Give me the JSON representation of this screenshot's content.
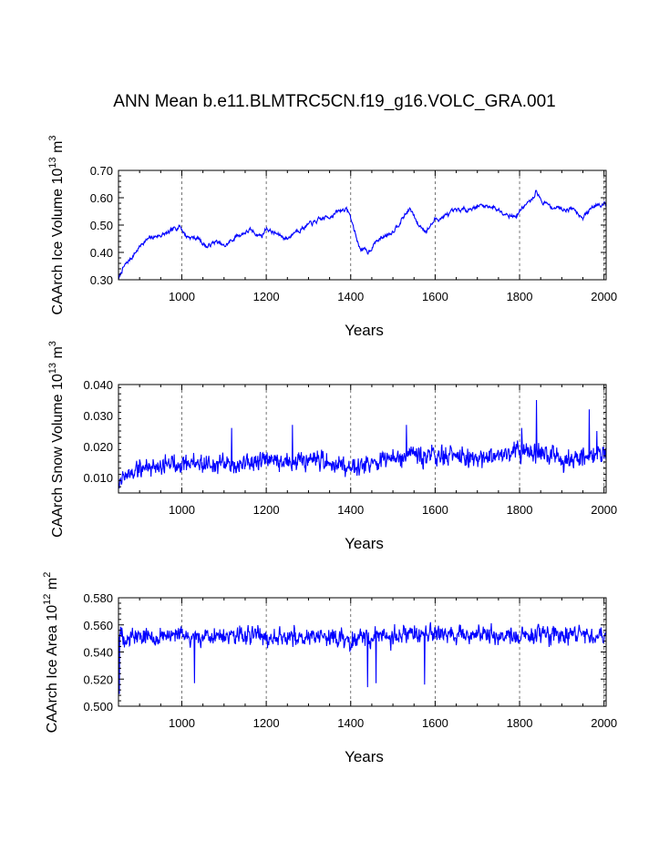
{
  "title": "ANN Mean b.e11.BLMTRC5CN.f19_g16.VOLC_GRA.001",
  "chart_data": [
    {
      "type": "line",
      "id": "ice_volume",
      "ylabel_main": "CAArch Ice Volume 10",
      "ylabel_exp1": "13",
      "ylabel_unit": " m",
      "ylabel_exp2": "3",
      "xlabel": "Years",
      "xlim": [
        850,
        2005
      ],
      "ylim": [
        0.3,
        0.7
      ],
      "xticks": [
        1000,
        1200,
        1400,
        1600,
        1800,
        2000
      ],
      "xtick_labels": [
        "1000",
        "1200",
        "1400",
        "1600",
        "1800",
        "2000"
      ],
      "yticks": [
        0.3,
        0.4,
        0.5,
        0.6,
        0.7
      ],
      "ytick_labels": [
        "0.30",
        "0.40",
        "0.50",
        "0.60",
        "0.70"
      ],
      "grid_x": true,
      "series": [
        {
          "name": "ice volume",
          "color": "#0000ff",
          "mode": "trend",
          "anchors": [
            [
              850,
              0.3
            ],
            [
              860,
              0.34
            ],
            [
              875,
              0.37
            ],
            [
              890,
              0.4
            ],
            [
              910,
              0.44
            ],
            [
              940,
              0.46
            ],
            [
              970,
              0.47
            ],
            [
              995,
              0.5
            ],
            [
              1010,
              0.46
            ],
            [
              1040,
              0.45
            ],
            [
              1060,
              0.42
            ],
            [
              1080,
              0.44
            ],
            [
              1100,
              0.42
            ],
            [
              1130,
              0.46
            ],
            [
              1160,
              0.48
            ],
            [
              1190,
              0.46
            ],
            [
              1200,
              0.49
            ],
            [
              1220,
              0.47
            ],
            [
              1250,
              0.45
            ],
            [
              1270,
              0.48
            ],
            [
              1300,
              0.5
            ],
            [
              1330,
              0.52
            ],
            [
              1360,
              0.54
            ],
            [
              1385,
              0.56
            ],
            [
              1395,
              0.55
            ],
            [
              1405,
              0.5
            ],
            [
              1420,
              0.42
            ],
            [
              1440,
              0.4
            ],
            [
              1460,
              0.44
            ],
            [
              1480,
              0.46
            ],
            [
              1500,
              0.48
            ],
            [
              1520,
              0.52
            ],
            [
              1540,
              0.56
            ],
            [
              1560,
              0.5
            ],
            [
              1580,
              0.48
            ],
            [
              1600,
              0.52
            ],
            [
              1620,
              0.53
            ],
            [
              1650,
              0.55
            ],
            [
              1680,
              0.56
            ],
            [
              1700,
              0.57
            ],
            [
              1730,
              0.57
            ],
            [
              1760,
              0.55
            ],
            [
              1790,
              0.53
            ],
            [
              1810,
              0.57
            ],
            [
              1830,
              0.59
            ],
            [
              1840,
              0.63
            ],
            [
              1850,
              0.59
            ],
            [
              1870,
              0.57
            ],
            [
              1900,
              0.56
            ],
            [
              1930,
              0.56
            ],
            [
              1950,
              0.53
            ],
            [
              1970,
              0.56
            ],
            [
              1985,
              0.58
            ],
            [
              2005,
              0.58
            ]
          ],
          "noise": 0.012,
          "seed": 7
        }
      ]
    },
    {
      "type": "line",
      "id": "snow_volume",
      "ylabel_main": "CAArch Snow Volume 10",
      "ylabel_exp1": "13",
      "ylabel_unit": " m",
      "ylabel_exp2": "3",
      "xlabel": "Years",
      "xlim": [
        850,
        2005
      ],
      "ylim": [
        0.005,
        0.04
      ],
      "xticks": [
        1000,
        1200,
        1400,
        1600,
        1800,
        2000
      ],
      "xtick_labels": [
        "1000",
        "1200",
        "1400",
        "1600",
        "1800",
        "2000"
      ],
      "yticks": [
        0.01,
        0.02,
        0.03,
        0.04
      ],
      "ytick_labels": [
        "0.010",
        "0.020",
        "0.030",
        "0.040"
      ],
      "grid_x": true,
      "series": [
        {
          "name": "snow volume",
          "color": "#0000ff",
          "mode": "noise",
          "anchors": [
            [
              850,
              0.009
            ],
            [
              900,
              0.013
            ],
            [
              1000,
              0.015
            ],
            [
              1100,
              0.014
            ],
            [
              1200,
              0.015
            ],
            [
              1300,
              0.015
            ],
            [
              1400,
              0.014
            ],
            [
              1500,
              0.016
            ],
            [
              1600,
              0.017
            ],
            [
              1700,
              0.016
            ],
            [
              1800,
              0.019
            ],
            [
              1900,
              0.016
            ],
            [
              2005,
              0.018
            ]
          ],
          "noise": 0.0045,
          "seed": 19,
          "spikes": [
            [
              1840,
              0.035
            ],
            [
              1532,
              0.027
            ],
            [
              1262,
              0.027
            ],
            [
              1118,
              0.026
            ],
            [
              1965,
              0.032
            ],
            [
              1983,
              0.025
            ],
            [
              1805,
              0.026
            ]
          ]
        }
      ]
    },
    {
      "type": "line",
      "id": "ice_area",
      "ylabel_main": "CAArch Ice Area 10",
      "ylabel_exp1": "12",
      "ylabel_unit": " m",
      "ylabel_exp2": "2",
      "xlabel": "Years",
      "xlim": [
        850,
        2005
      ],
      "ylim": [
        0.5,
        0.58
      ],
      "xticks": [
        1000,
        1200,
        1400,
        1600,
        1800,
        2000
      ],
      "xtick_labels": [
        "1000",
        "1200",
        "1400",
        "1600",
        "1800",
        "2000"
      ],
      "yticks": [
        0.5,
        0.52,
        0.54,
        0.56,
        0.58
      ],
      "ytick_labels": [
        "0.500",
        "0.520",
        "0.540",
        "0.560",
        "0.580"
      ],
      "grid_x": true,
      "series": [
        {
          "name": "ice area",
          "color": "#0000ff",
          "mode": "noise",
          "anchors": [
            [
              850,
              0.552
            ],
            [
              1000,
              0.551
            ],
            [
              1200,
              0.552
            ],
            [
              1400,
              0.55
            ],
            [
              1600,
              0.553
            ],
            [
              1800,
              0.552
            ],
            [
              2005,
              0.553
            ]
          ],
          "noise": 0.0095,
          "seed": 33,
          "spikes": [
            [
              852,
              0.509
            ],
            [
              1440,
              0.514
            ],
            [
              1460,
              0.517
            ],
            [
              1030,
              0.517
            ],
            [
              1575,
              0.516
            ]
          ]
        }
      ]
    }
  ]
}
